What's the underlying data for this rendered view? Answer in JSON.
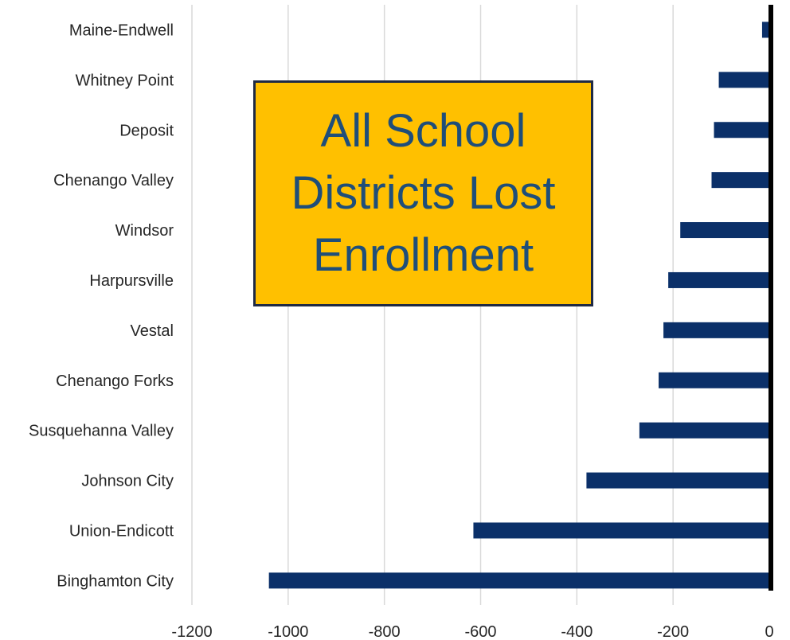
{
  "chart_data": {
    "type": "bar",
    "orientation": "horizontal",
    "categories": [
      "Maine-Endwell",
      "Whitney Point",
      "Deposit",
      "Chenango Valley",
      "Windsor",
      "Harpursville",
      "Vestal",
      "Chenango Forks",
      "Susquehanna Valley",
      "Johnson City",
      "Union-Endicott",
      "Binghamton City"
    ],
    "values": [
      -15,
      -105,
      -115,
      -120,
      -185,
      -210,
      -220,
      -230,
      -270,
      -380,
      -615,
      -1040
    ],
    "xlim": [
      -1200,
      0
    ],
    "xticks": [
      "-1200",
      "-1000",
      "-800",
      "-600",
      "-400",
      "-200",
      "0"
    ],
    "grid": "vertical",
    "colors": {
      "bar": "#0b3069",
      "zero_line": "#000000",
      "grid": "#d9d9d9"
    },
    "annotation": "All School Districts Lost Enrollment",
    "annotation_colors": {
      "fill": "#ffc000",
      "text": "#1f4e79",
      "border": "#1f2a44"
    }
  }
}
